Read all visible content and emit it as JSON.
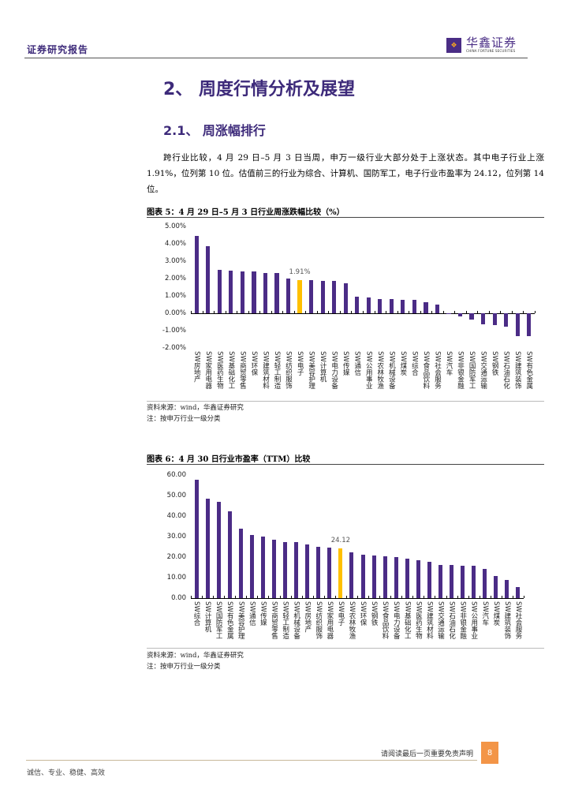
{
  "header": {
    "title": "证券研究报告",
    "logo_cn": "华鑫证券",
    "logo_en": "CHINA FORTUNE SECURITIES",
    "logo_mark": "❖"
  },
  "section": {
    "h1": "2、 周度行情分析及展望",
    "h2": "2.1、 周涨幅排行",
    "paragraph": "跨行业比较，4 月 29 日–5 月 3 日当周，申万一级行业大部分处于上涨状态。其中电子行业上涨 1.91%，位列第 10 位。估值前三的行业为综合、计算机、国防军工，电子行业市盈率为 24.12，位列第 14 位。"
  },
  "figure5": {
    "title": "图表 5：4 月 29 日–5 月 3 日行业周涨跌幅比较（%）",
    "source": "资料来源：wind，华鑫证券研究",
    "note": "注：按申万行业一级分类"
  },
  "figure6": {
    "title": "图表 6：4 月 30 日行业市盈率（TTM）比较",
    "source": "资料来源：wind，华鑫证券研究",
    "note": "注：按申万行业一级分类"
  },
  "chart_data": [
    {
      "type": "bar",
      "title": "4 月 29 日–5 月 3 日行业周涨跌幅比较（%）",
      "xlabel": "",
      "ylabel": "",
      "ylim": [
        -2,
        5
      ],
      "yticks": [
        "5.00%",
        "4.00%",
        "3.00%",
        "2.00%",
        "1.00%",
        "0.00%",
        "-1.00%",
        "-2.00%"
      ],
      "grid": false,
      "highlight_index": 9,
      "highlight_label": "1.91%",
      "categories": [
        "SW房地产",
        "SW家用电器",
        "SW医药生物",
        "SW基础化工",
        "SW商贸零售",
        "SW环保",
        "SW建筑材料",
        "SW轻工制造",
        "SW纺织服饰",
        "SW电子",
        "SW美容护理",
        "SW计算机",
        "SW电力设备",
        "SW传媒",
        "SW通信",
        "SW公用事业",
        "SW农林牧渔",
        "SW机械设备",
        "SW煤炭",
        "SW综合",
        "SW食品饮料",
        "SW社会服务",
        "SW汽车",
        "SW非银金融",
        "SW国防军工",
        "SW交通运输",
        "SW钢铁",
        "SW石油石化",
        "SW建筑装饰",
        "SW有色金属"
      ],
      "values": [
        4.45,
        3.87,
        2.5,
        2.47,
        2.4,
        2.4,
        2.33,
        2.31,
        1.98,
        1.91,
        1.9,
        1.88,
        1.87,
        1.72,
        0.96,
        0.9,
        0.84,
        0.82,
        0.79,
        0.77,
        0.65,
        0.48,
        0.01,
        -0.17,
        -0.38,
        -0.62,
        -0.7,
        -0.78,
        -1.33,
        -1.34
      ],
      "colors": {
        "bar": "#4b2c86",
        "highlight": "#ffc000"
      }
    },
    {
      "type": "bar",
      "title": "4 月 30 日行业市盈率（TTM）比较",
      "xlabel": "",
      "ylabel": "",
      "ylim": [
        0,
        60
      ],
      "yticks": [
        "60.00",
        "50.00",
        "40.00",
        "30.00",
        "20.00",
        "10.00",
        "0.00"
      ],
      "grid": false,
      "highlight_index": 13,
      "highlight_label": "24.12",
      "categories": [
        "SW综合",
        "SW计算机",
        "SW国防军工",
        "SW有色金属",
        "SW美容护理",
        "SW通信",
        "SW传媒",
        "SW商贸零售",
        "SW轻工制造",
        "SW机械设备",
        "SW房地产",
        "SW纺织服饰",
        "SW家用电器",
        "SW电子",
        "SW农林牧渔",
        "SW环保",
        "SW钢铁",
        "SW食品饮料",
        "SW电力设备",
        "SW基础化工",
        "SW医药生物",
        "SW建筑材料",
        "SW交通运输",
        "SW石油石化",
        "SW非银金融",
        "SW公用事业",
        "SW汽车",
        "SW煤炭",
        "SW建筑装饰",
        "SW社会服务"
      ],
      "values": [
        57.7,
        48.6,
        47.0,
        42.2,
        33.7,
        30.9,
        29.9,
        28.5,
        27.3,
        27.3,
        26.0,
        25.0,
        24.6,
        24.12,
        22.2,
        21.3,
        20.6,
        20.2,
        19.9,
        19.1,
        18.3,
        17.6,
        16.2,
        16.2,
        15.7,
        15.7,
        14.4,
        10.8,
        8.7,
        5.4
      ],
      "colors": {
        "bar": "#4b2c86",
        "highlight": "#ffc000"
      }
    }
  ],
  "footer": {
    "disclaimer": "请阅读最后一页重要免责声明",
    "page": "8",
    "slogan": "诚信、专业、稳健、高效"
  }
}
